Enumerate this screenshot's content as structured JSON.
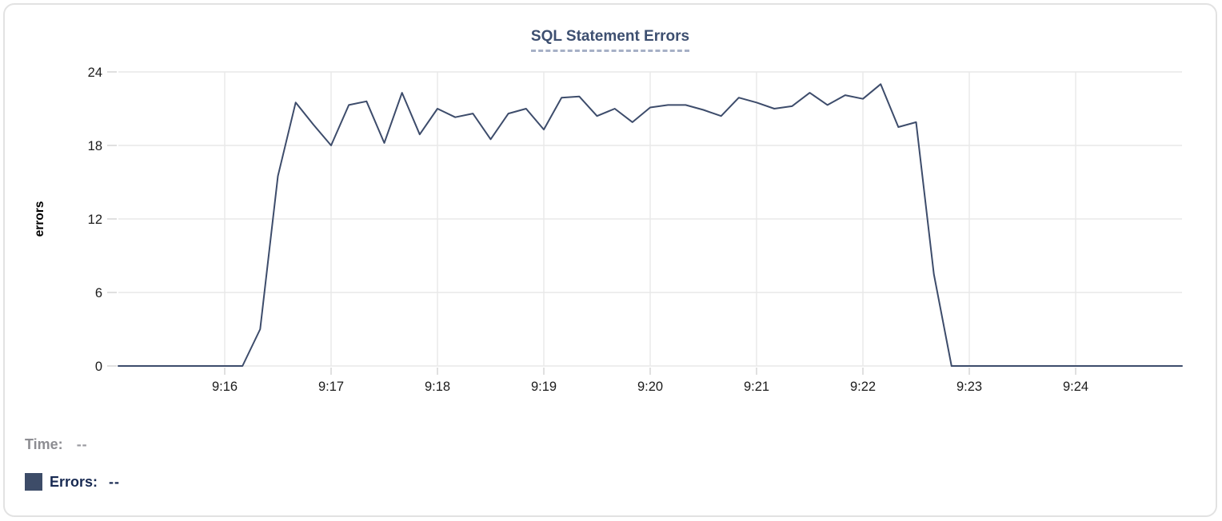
{
  "readout": {
    "time_label": "Time:",
    "time_value": "--",
    "errors_label": "Errors:",
    "errors_value": "--"
  },
  "colors": {
    "line": "#3d4c6b",
    "grid": "#e8e8e8",
    "tick_mark": "#d9d9d9",
    "axis_text": "#1b1b1b",
    "y_axis_title_text": "#000000",
    "title": "#3d4f70",
    "title_underline": "#a6b0c6",
    "card_border": "#e2e2e2",
    "swatch": "#3d4c68",
    "time_text": "#8d8d92",
    "errors_text": "#182a52"
  },
  "chart_data": {
    "type": "line",
    "title": "SQL Statement Errors",
    "xlabel": "",
    "ylabel": "errors",
    "ylim": [
      0,
      24
    ],
    "y_ticks": [
      0,
      6,
      12,
      18,
      24
    ],
    "x_start": "9:15:00",
    "x_end": "9:25:00",
    "x_tick_labels": [
      "9:16",
      "9:17",
      "9:18",
      "9:19",
      "9:20",
      "9:21",
      "9:22",
      "9:23",
      "9:24"
    ],
    "grid": true,
    "legend_position": "none",
    "series": [
      {
        "name": "Errors",
        "interval_seconds": 10,
        "start_time": "9:15:00",
        "values": [
          0,
          0,
          0,
          0,
          0,
          0,
          0,
          0,
          3,
          15.5,
          21.5,
          19.7,
          18,
          21.3,
          21.6,
          18.2,
          22.3,
          18.9,
          21,
          20.3,
          20.6,
          18.5,
          20.6,
          21,
          19.3,
          21.9,
          22,
          20.4,
          21,
          19.9,
          21.1,
          21.3,
          21.3,
          20.9,
          20.4,
          21.9,
          21.5,
          21,
          21.2,
          22.3,
          21.3,
          22.1,
          21.8,
          23,
          19.5,
          19.9,
          7.5,
          0,
          0,
          0,
          0,
          0,
          0,
          0,
          0,
          0,
          0,
          0,
          0,
          0,
          0
        ]
      }
    ]
  }
}
